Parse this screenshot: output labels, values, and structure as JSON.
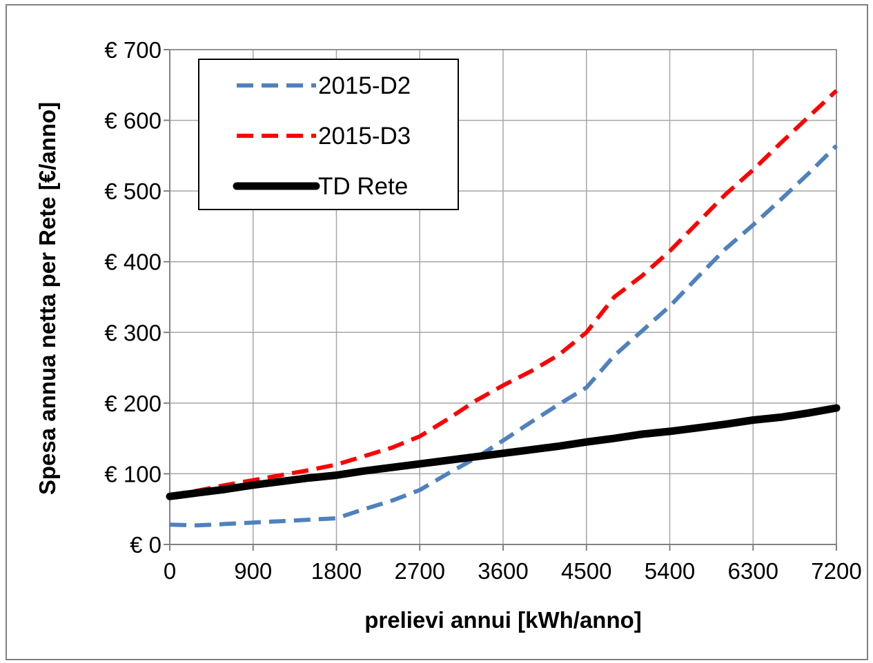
{
  "chart_data": {
    "type": "line",
    "title": "",
    "xlabel": "prelievi annui [kWh/anno]",
    "ylabel": "Spesa annua netta per Rete [€/anno]",
    "xlim": [
      0,
      7200
    ],
    "ylim": [
      0,
      700
    ],
    "x_ticks": [
      "0",
      "900",
      "1800",
      "2700",
      "3600",
      "4500",
      "5400",
      "6300",
      "7200"
    ],
    "y_ticks": [
      "€ 0",
      "€ 100",
      "€ 200",
      "€ 300",
      "€ 400",
      "€ 500",
      "€ 600",
      "€ 700"
    ],
    "grid": true,
    "legend_position": "top-left",
    "series": [
      {
        "name": "2015-D2",
        "color": "#4f81bd",
        "style": "dashed",
        "x": [
          0,
          300,
          600,
          900,
          1200,
          1500,
          1800,
          2100,
          2400,
          2700,
          3000,
          3300,
          3600,
          3900,
          4200,
          4500,
          4800,
          5100,
          5400,
          5700,
          6000,
          6300,
          6600,
          6900,
          7200
        ],
        "values": [
          28,
          27,
          29,
          31,
          33,
          35,
          37,
          50,
          62,
          77,
          100,
          122,
          147,
          173,
          198,
          222,
          267,
          302,
          337,
          378,
          418,
          452,
          488,
          525,
          564
        ]
      },
      {
        "name": "2015-D3",
        "color": "#ff0000",
        "style": "dashed",
        "x": [
          0,
          300,
          600,
          900,
          1200,
          1500,
          1800,
          2100,
          2400,
          2700,
          3000,
          3300,
          3600,
          3900,
          4200,
          4500,
          4800,
          5100,
          5400,
          5700,
          6000,
          6300,
          6600,
          6900,
          7200
        ],
        "values": [
          70,
          76,
          84,
          91,
          98,
          105,
          113,
          125,
          137,
          153,
          177,
          203,
          225,
          245,
          268,
          300,
          350,
          380,
          415,
          455,
          495,
          530,
          568,
          605,
          642
        ]
      },
      {
        "name": "TD Rete",
        "color": "#000000",
        "style": "solid",
        "x": [
          0,
          300,
          600,
          900,
          1200,
          1500,
          1800,
          2100,
          2400,
          2700,
          3000,
          3300,
          3600,
          3900,
          4200,
          4500,
          4800,
          5100,
          5400,
          5700,
          6000,
          6300,
          6600,
          6900,
          7200
        ],
        "values": [
          68,
          73,
          78,
          84,
          89,
          94,
          98,
          104,
          109,
          114,
          119,
          124,
          129,
          134,
          139,
          145,
          150,
          156,
          160,
          165,
          170,
          176,
          180,
          186,
          193
        ]
      }
    ]
  }
}
